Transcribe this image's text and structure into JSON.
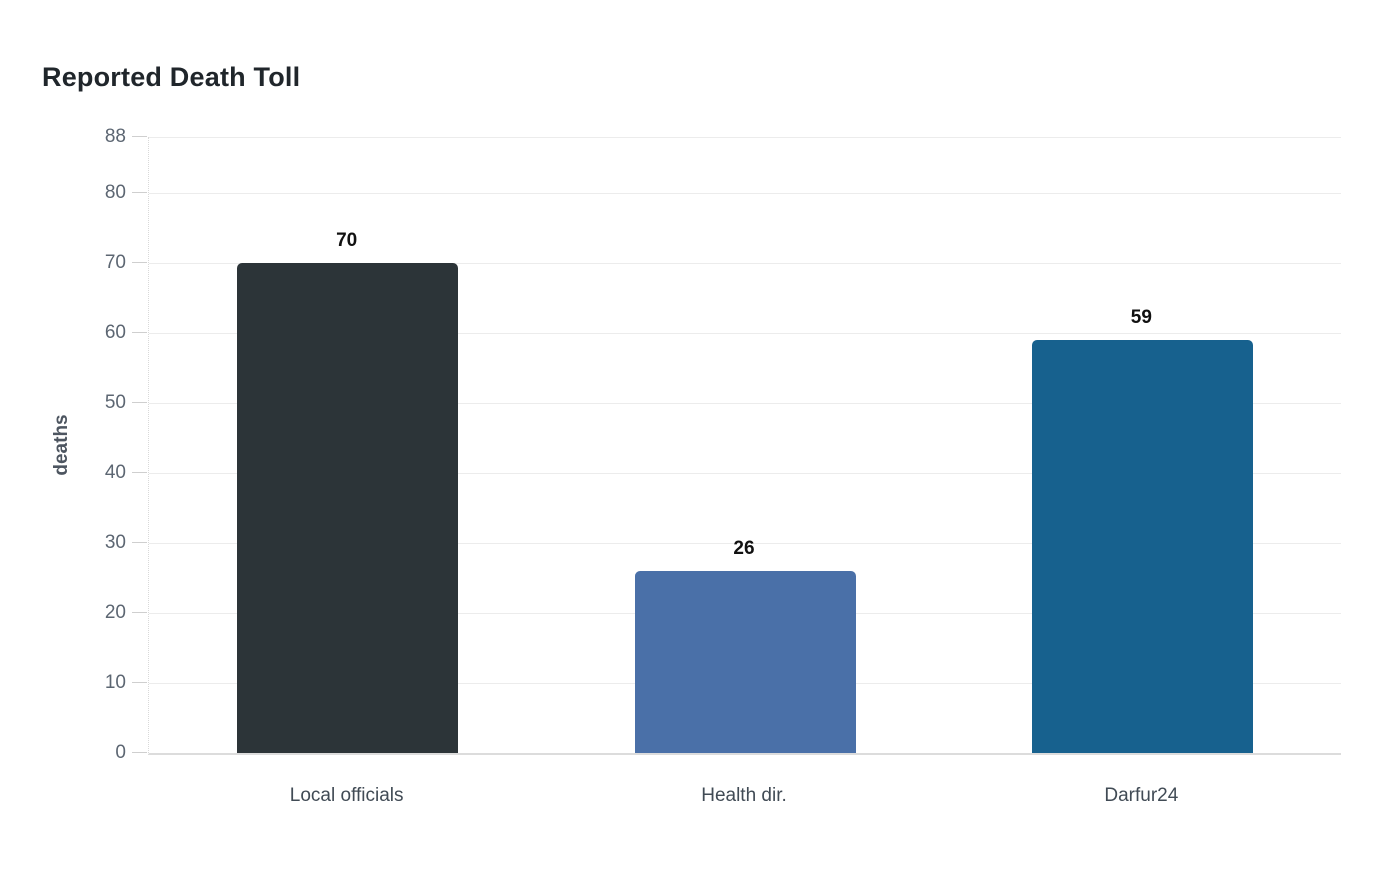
{
  "page": {
    "title": "Reported Death Toll"
  },
  "chart_data": {
    "type": "bar",
    "title": "Reported Death Toll",
    "xlabel": "",
    "ylabel": "deaths",
    "categories": [
      "Local officials",
      "Health dir.",
      "Darfur24"
    ],
    "values": [
      70,
      26,
      59
    ],
    "value_labels": [
      "70",
      "26",
      "59"
    ],
    "ylim": [
      0,
      88
    ],
    "yticks": [
      0,
      10,
      20,
      30,
      40,
      50,
      60,
      70,
      80,
      88
    ],
    "grid": "horizontal",
    "legend_position": "none",
    "bar_colors": [
      "#2c3438",
      "#4a70a8",
      "#17618e"
    ],
    "colors": {
      "background": "#ffffff",
      "gridline": "#ececec",
      "axis_line": "#dcdcdc",
      "tick_label": "#5c6672",
      "category_label": "#414b55",
      "value_label": "#111111",
      "title": "#20262b",
      "ylabel": "#4d5560"
    }
  }
}
